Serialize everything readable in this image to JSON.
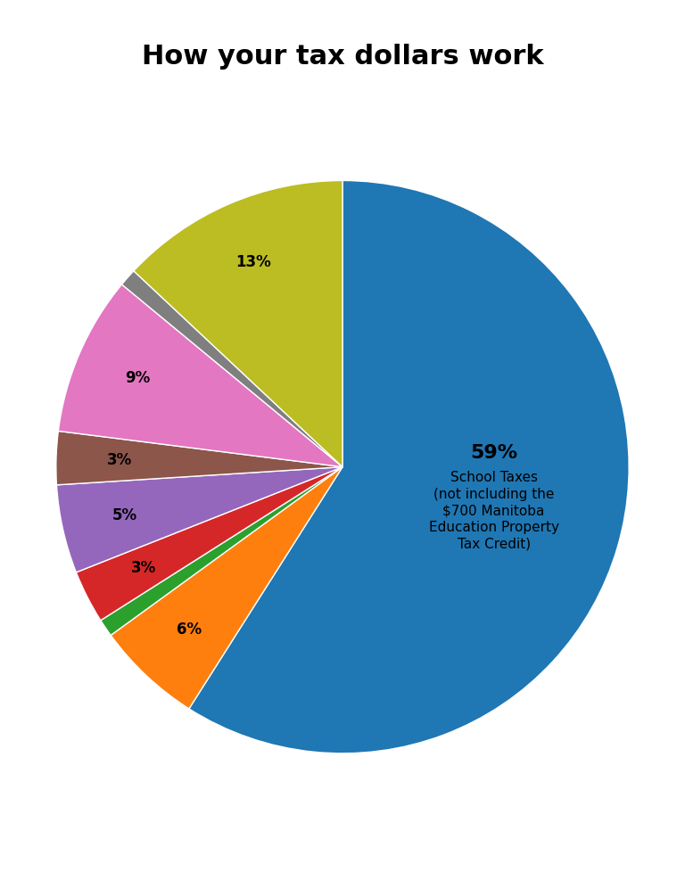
{
  "chart_data": {
    "type": "pie",
    "title": "How your tax dollars work",
    "categories": [
      "School Taxes\n(not including the\n$700 Manitoba\nEducation Property\nTax Credit)",
      null,
      null,
      null,
      null,
      null,
      null,
      null,
      null
    ],
    "values": [
      59,
      6,
      1,
      3,
      5,
      3,
      9,
      1,
      13
    ],
    "value_labels": [
      "59%",
      "6%",
      null,
      "3%",
      "5%",
      "3%",
      "9%",
      null,
      "13%"
    ],
    "data_labels": true
  }
}
